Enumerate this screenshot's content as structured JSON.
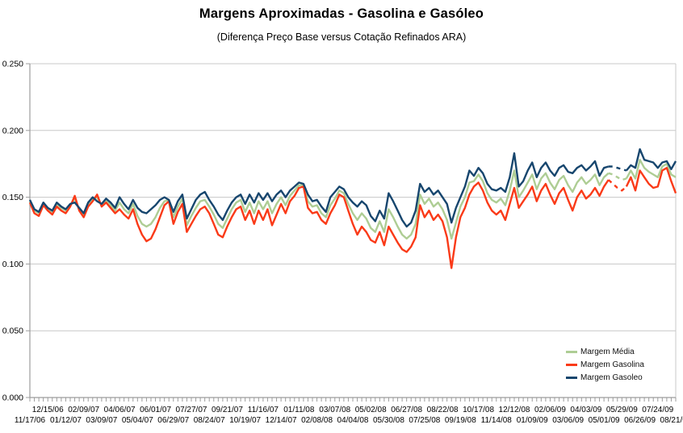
{
  "header": {
    "title": "Margens Aproximadas - Gasolina e Gasóleo",
    "subtitle": "(Diferença Preço Base versus Cotação Refinados ARA)"
  },
  "colors": {
    "background": "#ffffff",
    "gridline": "#c8c8c8",
    "axis_line": "#9c9c9c",
    "text": "#000000"
  },
  "chart_data": {
    "type": "line",
    "title": "Margens Aproximadas - Gasolina e Gasóleo",
    "subtitle": "(Diferença Preço Base versus Cotação Refinados ARA)",
    "xlabel": "",
    "ylabel": "",
    "ylim": [
      0.0,
      0.25
    ],
    "ytick_step": 0.05,
    "ytick_labels": [
      "0.000",
      "0.050",
      "0.100",
      "0.150",
      "0.200",
      "0.250"
    ],
    "grid": "horizontal",
    "legend_position": "bottom-right-inside",
    "x_is_weekly_dates": true,
    "x_tick_count": 145,
    "x_label_week_step": 8,
    "x_labels_upper_start_week": 4,
    "x_labels_lower_start_week": 0,
    "x_labels_upper": [
      "12/15/06",
      "02/09/07",
      "04/06/07",
      "06/01/07",
      "07/27/07",
      "09/21/07",
      "11/16/07",
      "01/11/08",
      "03/07/08",
      "05/02/08",
      "06/27/08",
      "08/22/08",
      "10/17/08",
      "12/12/08",
      "02/06/09",
      "04/03/09",
      "05/29/09",
      "07/24/09"
    ],
    "x_labels_lower": [
      "11/17/06",
      "01/12/07",
      "03/09/07",
      "05/04/07",
      "06/29/07",
      "08/24/07",
      "10/19/07",
      "12/14/07",
      "02/08/08",
      "04/04/08",
      "05/30/08",
      "07/25/08",
      "09/19/08",
      "11/14/08",
      "01/09/09",
      "03/06/09",
      "05/01/09",
      "06/26/09",
      "08/21/09"
    ],
    "dashed_gap_weeks": [
      129,
      133
    ],
    "series": [
      {
        "name": "Margem Média",
        "color": "#AECD94",
        "values": [
          0.147,
          0.14,
          0.138,
          0.145,
          0.141,
          0.139,
          0.145,
          0.142,
          0.14,
          0.144,
          0.149,
          0.141,
          0.137,
          0.145,
          0.149,
          0.15,
          0.144,
          0.148,
          0.144,
          0.14,
          0.146,
          0.141,
          0.138,
          0.145,
          0.136,
          0.13,
          0.128,
          0.13,
          0.135,
          0.142,
          0.147,
          0.148,
          0.135,
          0.143,
          0.149,
          0.129,
          0.136,
          0.142,
          0.147,
          0.148,
          0.143,
          0.137,
          0.13,
          0.127,
          0.134,
          0.141,
          0.146,
          0.148,
          0.139,
          0.146,
          0.138,
          0.147,
          0.141,
          0.147,
          0.138,
          0.145,
          0.15,
          0.144,
          0.151,
          0.155,
          0.159,
          0.159,
          0.147,
          0.143,
          0.144,
          0.138,
          0.135,
          0.144,
          0.149,
          0.155,
          0.153,
          0.145,
          0.138,
          0.133,
          0.138,
          0.134,
          0.127,
          0.124,
          0.132,
          0.124,
          0.141,
          0.135,
          0.128,
          0.122,
          0.119,
          0.122,
          0.13,
          0.152,
          0.145,
          0.149,
          0.143,
          0.146,
          0.141,
          0.133,
          0.119,
          0.131,
          0.143,
          0.15,
          0.161,
          0.162,
          0.167,
          0.162,
          0.153,
          0.148,
          0.146,
          0.149,
          0.144,
          0.155,
          0.17,
          0.15,
          0.155,
          0.161,
          0.167,
          0.156,
          0.164,
          0.168,
          0.161,
          0.156,
          0.163,
          0.166,
          0.159,
          0.154,
          0.161,
          0.165,
          0.16,
          0.163,
          0.167,
          0.159,
          0.165,
          0.168,
          0.167,
          0.165,
          0.163,
          0.164,
          0.17,
          0.164,
          0.178,
          0.172,
          0.169,
          0.167,
          0.165,
          0.173,
          0.175,
          0.167,
          0.165
        ]
      },
      {
        "name": "Margem Gasolina",
        "color": "#FA3A18",
        "values": [
          0.146,
          0.138,
          0.136,
          0.144,
          0.14,
          0.137,
          0.143,
          0.14,
          0.138,
          0.143,
          0.151,
          0.14,
          0.135,
          0.143,
          0.147,
          0.152,
          0.143,
          0.146,
          0.142,
          0.138,
          0.141,
          0.137,
          0.134,
          0.141,
          0.13,
          0.122,
          0.117,
          0.119,
          0.126,
          0.135,
          0.144,
          0.147,
          0.13,
          0.139,
          0.145,
          0.124,
          0.13,
          0.136,
          0.141,
          0.143,
          0.138,
          0.13,
          0.122,
          0.12,
          0.128,
          0.135,
          0.141,
          0.143,
          0.133,
          0.14,
          0.13,
          0.14,
          0.133,
          0.141,
          0.129,
          0.137,
          0.145,
          0.138,
          0.147,
          0.151,
          0.157,
          0.158,
          0.142,
          0.138,
          0.139,
          0.133,
          0.13,
          0.138,
          0.144,
          0.152,
          0.15,
          0.14,
          0.13,
          0.122,
          0.128,
          0.124,
          0.118,
          0.116,
          0.124,
          0.114,
          0.128,
          0.122,
          0.116,
          0.111,
          0.109,
          0.113,
          0.12,
          0.144,
          0.135,
          0.14,
          0.133,
          0.137,
          0.132,
          0.12,
          0.097,
          0.12,
          0.135,
          0.142,
          0.152,
          0.158,
          0.161,
          0.155,
          0.146,
          0.14,
          0.137,
          0.14,
          0.133,
          0.145,
          0.157,
          0.142,
          0.147,
          0.152,
          0.158,
          0.147,
          0.155,
          0.16,
          0.152,
          0.145,
          0.153,
          0.157,
          0.148,
          0.14,
          0.15,
          0.155,
          0.149,
          0.152,
          0.157,
          0.151,
          0.158,
          0.163,
          0.16,
          0.157,
          0.155,
          0.158,
          0.165,
          0.155,
          0.17,
          0.165,
          0.16,
          0.157,
          0.158,
          0.17,
          0.172,
          0.162,
          0.153
        ]
      },
      {
        "name": "Margem Gasoleo",
        "color": "#17466E",
        "values": [
          0.148,
          0.141,
          0.139,
          0.146,
          0.142,
          0.14,
          0.146,
          0.143,
          0.141,
          0.145,
          0.146,
          0.142,
          0.138,
          0.146,
          0.15,
          0.147,
          0.145,
          0.149,
          0.146,
          0.142,
          0.15,
          0.145,
          0.141,
          0.148,
          0.142,
          0.139,
          0.138,
          0.141,
          0.144,
          0.148,
          0.15,
          0.148,
          0.139,
          0.147,
          0.152,
          0.134,
          0.141,
          0.148,
          0.152,
          0.154,
          0.148,
          0.143,
          0.137,
          0.133,
          0.14,
          0.146,
          0.15,
          0.152,
          0.145,
          0.152,
          0.146,
          0.153,
          0.148,
          0.153,
          0.147,
          0.152,
          0.155,
          0.15,
          0.155,
          0.158,
          0.161,
          0.16,
          0.152,
          0.147,
          0.148,
          0.143,
          0.139,
          0.15,
          0.154,
          0.158,
          0.156,
          0.15,
          0.146,
          0.143,
          0.147,
          0.144,
          0.136,
          0.132,
          0.14,
          0.134,
          0.153,
          0.147,
          0.14,
          0.133,
          0.128,
          0.131,
          0.14,
          0.16,
          0.154,
          0.157,
          0.152,
          0.155,
          0.15,
          0.145,
          0.131,
          0.142,
          0.15,
          0.158,
          0.17,
          0.166,
          0.172,
          0.168,
          0.16,
          0.156,
          0.155,
          0.157,
          0.154,
          0.165,
          0.183,
          0.158,
          0.162,
          0.17,
          0.176,
          0.165,
          0.172,
          0.176,
          0.17,
          0.166,
          0.172,
          0.174,
          0.169,
          0.168,
          0.172,
          0.174,
          0.17,
          0.173,
          0.177,
          0.166,
          0.172,
          0.173,
          0.173,
          0.172,
          0.171,
          0.17,
          0.174,
          0.172,
          0.186,
          0.178,
          0.177,
          0.176,
          0.172,
          0.176,
          0.177,
          0.171,
          0.177
        ]
      }
    ]
  }
}
